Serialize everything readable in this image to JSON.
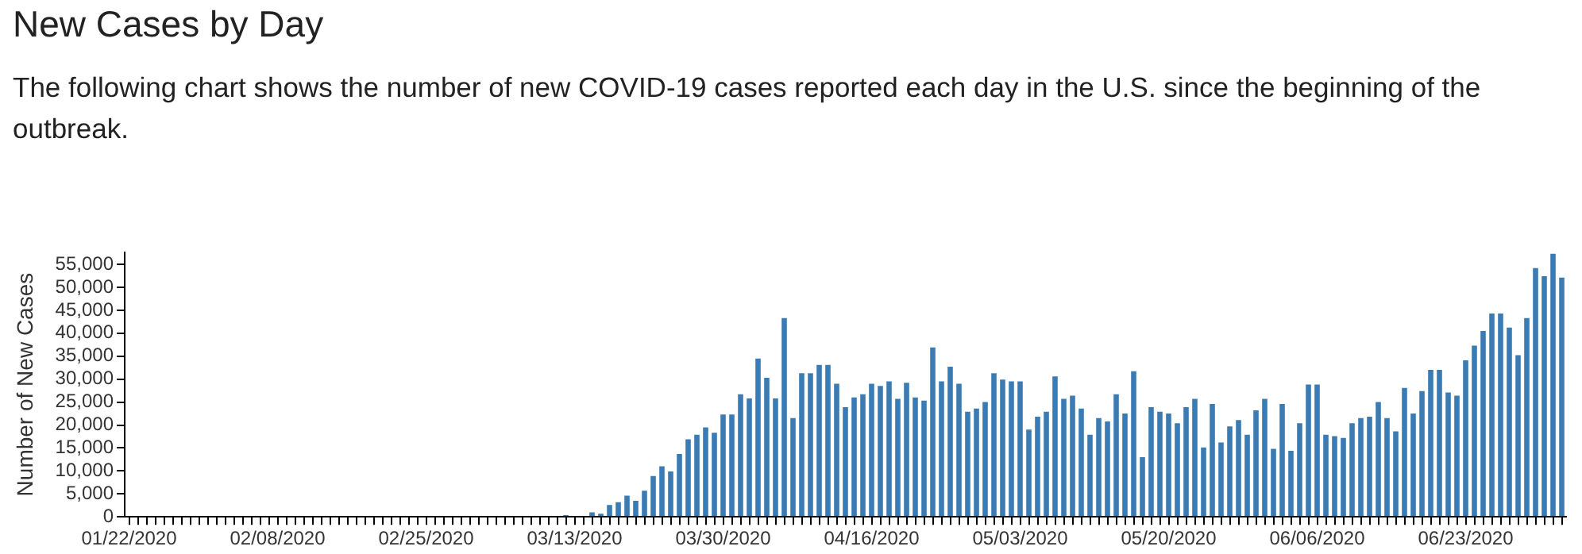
{
  "chart_data": {
    "type": "bar",
    "title": "New Cases by Day",
    "subtitle": "The following chart shows the number of new COVID-19 cases reported each day in the U.S. since the beginning of the outbreak.",
    "ylabel": "Number of New Cases",
    "categories": [
      "01/22/2020",
      null,
      null,
      null,
      null,
      null,
      null,
      null,
      null,
      null,
      null,
      null,
      null,
      null,
      null,
      null,
      null,
      "02/08/2020",
      null,
      null,
      null,
      null,
      null,
      null,
      null,
      null,
      null,
      null,
      null,
      null,
      null,
      null,
      null,
      null,
      "02/25/2020",
      null,
      null,
      null,
      null,
      null,
      null,
      null,
      null,
      null,
      null,
      null,
      null,
      null,
      null,
      null,
      null,
      "03/13/2020",
      null,
      null,
      null,
      null,
      null,
      null,
      null,
      null,
      null,
      null,
      null,
      null,
      null,
      null,
      null,
      null,
      "03/30/2020",
      null,
      null,
      null,
      null,
      null,
      null,
      null,
      null,
      null,
      null,
      null,
      null,
      null,
      null,
      null,
      null,
      "04/16/2020",
      null,
      null,
      null,
      null,
      null,
      null,
      null,
      null,
      null,
      null,
      null,
      null,
      null,
      null,
      null,
      null,
      "05/03/2020",
      null,
      null,
      null,
      null,
      null,
      null,
      null,
      null,
      null,
      null,
      null,
      null,
      null,
      null,
      null,
      null,
      "05/20/2020",
      null,
      null,
      null,
      null,
      null,
      null,
      null,
      null,
      null,
      null,
      null,
      null,
      null,
      null,
      null,
      null,
      "06/06/2020",
      null,
      null,
      null,
      null,
      null,
      null,
      null,
      null,
      null,
      null,
      null,
      null,
      null,
      null,
      null,
      null,
      "06/23/2020",
      null,
      null,
      null,
      null,
      null,
      null,
      null,
      null,
      null,
      null,
      null
    ],
    "values": [
      0,
      0,
      0,
      0,
      0,
      0,
      0,
      0,
      0,
      0,
      0,
      0,
      0,
      0,
      0,
      0,
      0,
      0,
      0,
      0,
      0,
      0,
      0,
      0,
      0,
      0,
      0,
      0,
      0,
      0,
      0,
      0,
      0,
      0,
      0,
      0,
      0,
      0,
      0,
      0,
      0,
      0,
      0,
      0,
      0,
      0,
      0,
      0,
      0,
      0,
      400,
      0,
      0,
      1000,
      700,
      2600,
      3200,
      4600,
      3500,
      5700,
      8900,
      11000,
      9900,
      13700,
      16900,
      17900,
      19500,
      18300,
      22300,
      22300,
      26700,
      25800,
      34500,
      30300,
      25800,
      43300,
      21500,
      31300,
      31300,
      33100,
      33100,
      29000,
      23900,
      26000,
      26700,
      29000,
      28500,
      29500,
      25700,
      29200,
      26000,
      25300,
      36900,
      29500,
      32700,
      29000,
      22900,
      23600,
      25000,
      31300,
      29900,
      29500,
      29500,
      19000,
      21800,
      22900,
      30600,
      25700,
      26400,
      23600,
      17900,
      21500,
      20800,
      26700,
      22500,
      31700,
      13000,
      23900,
      22900,
      22500,
      20400,
      23900,
      25700,
      15100,
      24600,
      16200,
      19700,
      21100,
      17900,
      23200,
      25700,
      14800,
      24600,
      14400,
      20400,
      28800,
      28800,
      17900,
      17600,
      17200,
      20400,
      21500,
      21800,
      25000,
      21500,
      18600,
      28100,
      22500,
      27400,
      32000,
      32000,
      27100,
      26400,
      34100,
      37300,
      40500,
      44300,
      44300,
      41200,
      35200,
      43300,
      54200,
      52400,
      57300,
      52100
    ],
    "color": "#3a7bb3",
    "ylim": [
      0,
      57600
    ],
    "yticks": [
      0,
      {
        "value": 5000,
        "label": "5,000"
      },
      {
        "value": 10000,
        "label": "10,000"
      },
      {
        "value": 15000,
        "label": "15,000"
      },
      {
        "value": 20000,
        "label": "20,000"
      },
      {
        "value": 25000,
        "label": "25,000"
      },
      {
        "value": 30000,
        "label": "30,000"
      },
      {
        "value": 35000,
        "label": "35,000"
      },
      {
        "value": 40000,
        "label": "40,000"
      },
      {
        "value": 45000,
        "label": "45,000"
      },
      {
        "value": 50000,
        "label": "50,000"
      },
      {
        "value": 55000,
        "label": "55,000"
      }
    ],
    "grid": false,
    "legend": false
  }
}
